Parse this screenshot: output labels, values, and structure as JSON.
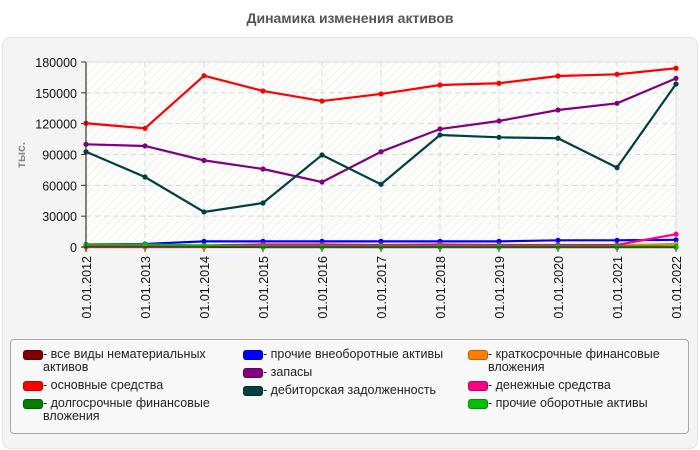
{
  "title": "Динамика изменения активов",
  "chart_data": {
    "type": "line",
    "title": "Динамика изменения активов",
    "xlabel": "",
    "ylabel": "тыс.",
    "ylim": [
      0,
      180000
    ],
    "yticks": [
      "0",
      "30000",
      "60000",
      "90000",
      "120000",
      "150000",
      "180000"
    ],
    "grid": true,
    "legend_position": "bottom",
    "categories": [
      "01.01.2012",
      "01.01.2013",
      "01.01.2014",
      "01.01.2015",
      "01.01.2016",
      "01.01.2017",
      "01.01.2018",
      "01.01.2019",
      "01.01.2020",
      "01.01.2021",
      "01.01.2022"
    ],
    "series": [
      {
        "name": "все виды нематериальных активов",
        "color": "#800000",
        "values": [
          0,
          0,
          0,
          0,
          0,
          0,
          0,
          0,
          0,
          0,
          0
        ]
      },
      {
        "name": "основные средства",
        "color": "#ff0000",
        "values": [
          120400,
          115500,
          166700,
          151800,
          142000,
          148900,
          157600,
          159300,
          166400,
          168000,
          173900
        ]
      },
      {
        "name": "долгосрочные финансовые вложения",
        "color": "#008000",
        "values": [
          500,
          500,
          800,
          0,
          0,
          0,
          0,
          0,
          0,
          0,
          0
        ]
      },
      {
        "name": "прочие внеоборотные активы",
        "color": "#0000ff",
        "values": [
          2500,
          3000,
          5500,
          5500,
          5500,
          5500,
          5500,
          5500,
          6500,
          6500,
          7000
        ]
      },
      {
        "name": "запасы",
        "color": "#800080",
        "values": [
          99900,
          98300,
          84300,
          75900,
          63200,
          92700,
          114800,
          122600,
          133300,
          139800,
          164100
        ]
      },
      {
        "name": "дебиторская задолженность",
        "color": "#004040",
        "values": [
          92700,
          68100,
          34100,
          42800,
          89500,
          61000,
          109000,
          106700,
          105800,
          77200,
          158600
        ]
      },
      {
        "name": "краткосрочные финансовые вложения",
        "color": "#ff8000",
        "values": [
          200,
          200,
          200,
          1500,
          1500,
          1500,
          1500,
          1500,
          1500,
          1500,
          3000
        ]
      },
      {
        "name": "денежные средства",
        "color": "#ff0080",
        "values": [
          1000,
          1000,
          1500,
          2500,
          2500,
          2000,
          2500,
          2000,
          2000,
          2000,
          12500
        ]
      },
      {
        "name": "прочие оборотные активы",
        "color": "#00c000",
        "values": [
          2500,
          2500,
          1500,
          500,
          500,
          500,
          500,
          500,
          500,
          500,
          500
        ]
      }
    ]
  },
  "legend": {
    "col1": [
      {
        "label": "- все виды нематериальных активов",
        "color": "#800000"
      },
      {
        "label": "- основные средства",
        "color": "#ff0000"
      },
      {
        "label": "- долгосрочные финансовые вложения",
        "color": "#008000"
      }
    ],
    "col2": [
      {
        "label": "- прочие внеоборотные активы",
        "color": "#0000ff"
      },
      {
        "label": "- запасы",
        "color": "#800080"
      },
      {
        "label": "- дебиторская задолженность",
        "color": "#004040"
      }
    ],
    "col3": [
      {
        "label": "- краткосрочные финансовые вложения",
        "color": "#ff8000"
      },
      {
        "label": "- денежные средства",
        "color": "#ff0080"
      },
      {
        "label": "- прочие оборотные активы",
        "color": "#00c000"
      }
    ]
  }
}
